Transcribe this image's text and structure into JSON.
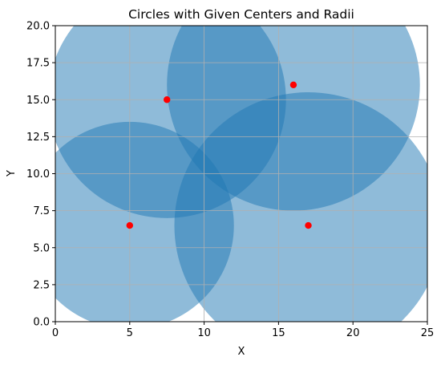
{
  "chart_data": {
    "type": "scatter",
    "title": "Circles with Given Centers and Radii",
    "xlabel": "X",
    "ylabel": "Y",
    "xlim": [
      0,
      25
    ],
    "ylim": [
      0,
      20
    ],
    "xticks": [
      0,
      5,
      10,
      15,
      20,
      25
    ],
    "xtick_labels": [
      "0",
      "5",
      "10",
      "15",
      "20",
      "25"
    ],
    "yticks": [
      0,
      2.5,
      5,
      7.5,
      10,
      12.5,
      15,
      17.5,
      20
    ],
    "ytick_labels": [
      "0.0",
      "2.5",
      "5.0",
      "7.5",
      "10.0",
      "12.5",
      "15.0",
      "17.5",
      "20.0"
    ],
    "grid": true,
    "circles": [
      {
        "center": [
          5,
          6.5
        ],
        "radius": 7
      },
      {
        "center": [
          7.5,
          15
        ],
        "radius": 8
      },
      {
        "center": [
          16,
          16
        ],
        "radius": 8.5
      },
      {
        "center": [
          17,
          6.5
        ],
        "radius": 9
      }
    ],
    "centers": {
      "x": [
        5,
        7.5,
        16,
        17
      ],
      "y": [
        6.5,
        15,
        16,
        6.5
      ]
    },
    "colors": {
      "circle_fill": "#1f77b4",
      "circle_alpha": 0.5,
      "center_marker": "#ff0000",
      "grid": "#b0b0b0"
    }
  }
}
